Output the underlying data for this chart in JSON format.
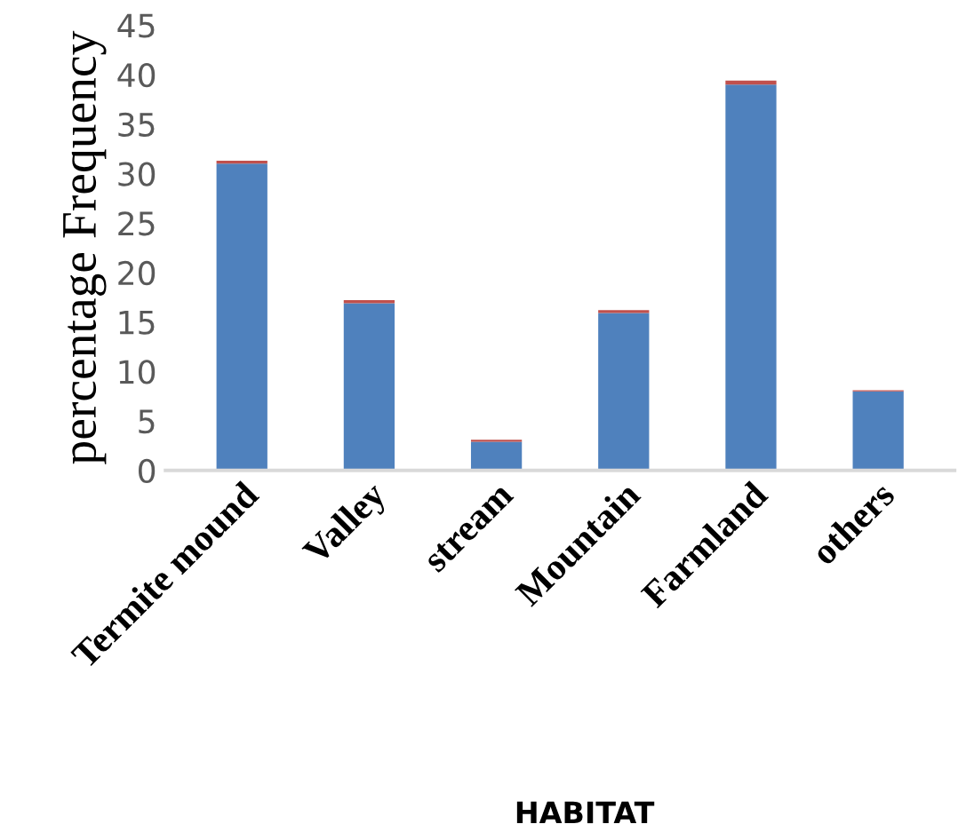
{
  "chart_data": {
    "type": "bar",
    "stacked": true,
    "xlabel": "HABITAT",
    "ylabel": "percentage Frequency",
    "categories": [
      "Termite mound",
      "Valley",
      "stream",
      "Mountain",
      "Farmland",
      "others"
    ],
    "series": [
      {
        "color": "#4f81bd",
        "values": [
          31.0,
          16.9,
          2.9,
          15.9,
          39.0,
          8.0
        ]
      },
      {
        "color": "#c0504d",
        "values": [
          0.3,
          0.3,
          0.2,
          0.3,
          0.4,
          0.1
        ]
      }
    ],
    "ylim": [
      0,
      45
    ],
    "yticks": [
      0,
      5,
      10,
      15,
      20,
      25,
      30,
      35,
      40,
      45
    ],
    "grid": false,
    "legend": false
  }
}
